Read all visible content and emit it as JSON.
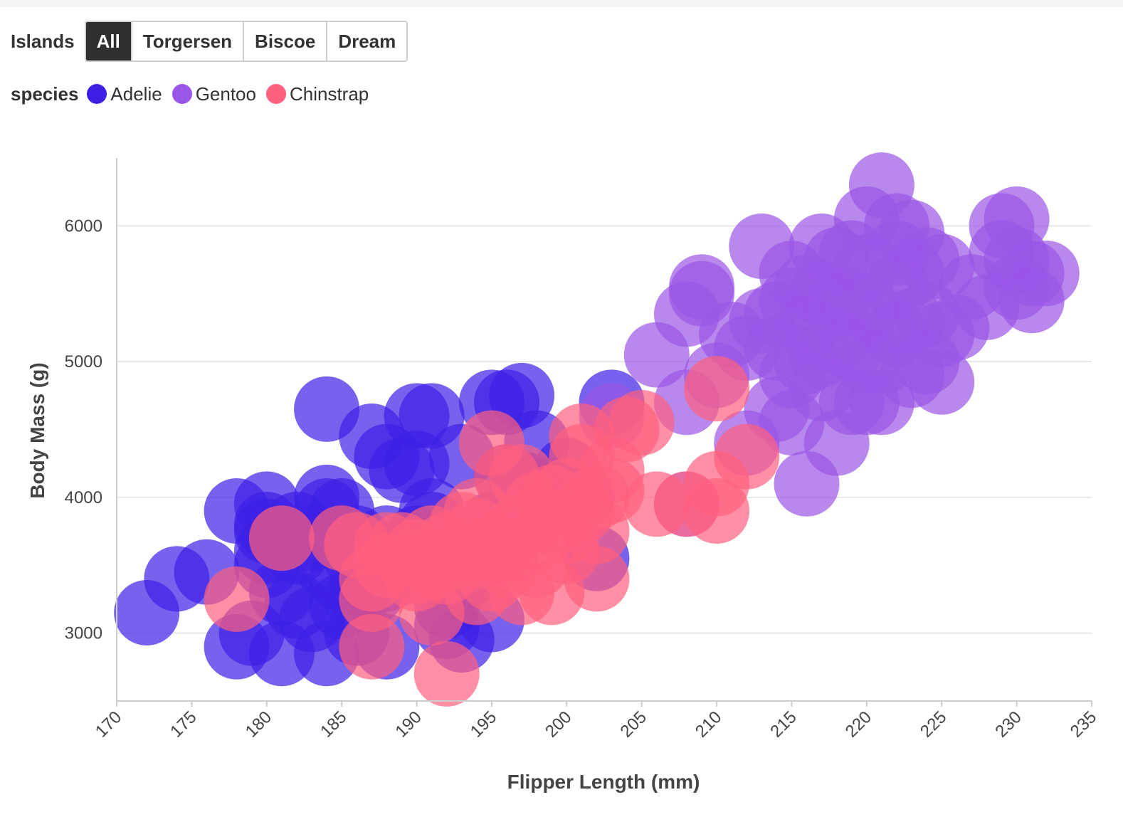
{
  "filter": {
    "label": "Islands",
    "options": [
      "All",
      "Torgersen",
      "Biscoe",
      "Dream"
    ],
    "selected": "All"
  },
  "legend": {
    "title": "species",
    "items": [
      {
        "label": "Adelie",
        "color": "#3d1fe6"
      },
      {
        "label": "Gentoo",
        "color": "#9a56e6"
      },
      {
        "label": "Chinstrap",
        "color": "#ff607e"
      }
    ]
  },
  "chart_data": {
    "type": "scatter",
    "xlabel": "Flipper Length (mm)",
    "ylabel": "Body Mass (g)",
    "xlim": [
      170,
      235
    ],
    "ylim": [
      2500,
      6500
    ],
    "xticks": [
      170,
      175,
      180,
      185,
      190,
      195,
      200,
      205,
      210,
      215,
      220,
      225,
      230,
      235
    ],
    "yticks": [
      3000,
      4000,
      5000,
      6000
    ],
    "grid": "horizontal",
    "series": [
      {
        "name": "Adelie",
        "color": "#3d1fe6",
        "points": [
          [
            172,
            3150
          ],
          [
            174,
            3400
          ],
          [
            176,
            3450
          ],
          [
            178,
            3900
          ],
          [
            178,
            2900
          ],
          [
            179,
            3000
          ],
          [
            180,
            3950
          ],
          [
            180,
            3800
          ],
          [
            180,
            3600
          ],
          [
            180,
            3500
          ],
          [
            181,
            2850
          ],
          [
            181,
            3300
          ],
          [
            182,
            3200
          ],
          [
            182,
            3600
          ],
          [
            183,
            3100
          ],
          [
            184,
            3900
          ],
          [
            184,
            3500
          ],
          [
            184,
            2850
          ],
          [
            185,
            3700
          ],
          [
            185,
            3400
          ],
          [
            185,
            3900
          ],
          [
            186,
            3250
          ],
          [
            186,
            3550
          ],
          [
            186,
            3000
          ],
          [
            187,
            4450
          ],
          [
            187,
            3600
          ],
          [
            188,
            4300
          ],
          [
            188,
            3400
          ],
          [
            188,
            2900
          ],
          [
            189,
            3500
          ],
          [
            189,
            4200
          ],
          [
            190,
            4600
          ],
          [
            190,
            4250
          ],
          [
            190,
            3700
          ],
          [
            190,
            3450
          ],
          [
            191,
            4600
          ],
          [
            191,
            3900
          ],
          [
            191,
            3800
          ],
          [
            192,
            3200
          ],
          [
            192,
            3050
          ],
          [
            193,
            4300
          ],
          [
            193,
            3400
          ],
          [
            193,
            2950
          ],
          [
            194,
            3600
          ],
          [
            194,
            3700
          ],
          [
            195,
            4700
          ],
          [
            195,
            3800
          ],
          [
            195,
            3100
          ],
          [
            196,
            4700
          ],
          [
            196,
            4150
          ],
          [
            197,
            4750
          ],
          [
            197,
            4100
          ],
          [
            198,
            4400
          ],
          [
            198,
            3900
          ],
          [
            199,
            4050
          ],
          [
            200,
            4200
          ],
          [
            201,
            4000
          ],
          [
            202,
            3550
          ],
          [
            203,
            4700
          ],
          [
            184,
            4650
          ],
          [
            180,
            3750
          ],
          [
            182,
            3800
          ],
          [
            187,
            3300
          ],
          [
            189,
            3600
          ],
          [
            184,
            4000
          ],
          [
            186,
            3700
          ],
          [
            183,
            3700
          ],
          [
            181,
            3700
          ],
          [
            188,
            3700
          ],
          [
            185,
            3200
          ]
        ]
      },
      {
        "name": "Gentoo",
        "color": "#9a56e6",
        "points": [
          [
            203,
            4600
          ],
          [
            206,
            5050
          ],
          [
            208,
            5350
          ],
          [
            208,
            4700
          ],
          [
            208,
            3950
          ],
          [
            209,
            5550
          ],
          [
            209,
            5500
          ],
          [
            210,
            4900
          ],
          [
            211,
            5200
          ],
          [
            212,
            4400
          ],
          [
            213,
            5850
          ],
          [
            213,
            5300
          ],
          [
            214,
            5100
          ],
          [
            214,
            4650
          ],
          [
            215,
            5650
          ],
          [
            215,
            5450
          ],
          [
            215,
            4900
          ],
          [
            215,
            4550
          ],
          [
            216,
            5550
          ],
          [
            216,
            5250
          ],
          [
            216,
            4100
          ],
          [
            217,
            5850
          ],
          [
            217,
            5500
          ],
          [
            217,
            5050
          ],
          [
            217,
            4800
          ],
          [
            218,
            5750
          ],
          [
            218,
            5400
          ],
          [
            218,
            4400
          ],
          [
            219,
            5800
          ],
          [
            219,
            5100
          ],
          [
            219,
            4700
          ],
          [
            220,
            5700
          ],
          [
            220,
            5400
          ],
          [
            220,
            5000
          ],
          [
            220,
            4700
          ],
          [
            220,
            6050
          ],
          [
            221,
            6300
          ],
          [
            221,
            5300
          ],
          [
            221,
            4700
          ],
          [
            222,
            6000
          ],
          [
            222,
            5800
          ],
          [
            222,
            5550
          ],
          [
            222,
            5200
          ],
          [
            223,
            5950
          ],
          [
            223,
            5650
          ],
          [
            223,
            4900
          ],
          [
            224,
            5750
          ],
          [
            224,
            5350
          ],
          [
            224,
            5000
          ],
          [
            225,
            5700
          ],
          [
            225,
            5200
          ],
          [
            225,
            4850
          ],
          [
            226,
            5250
          ],
          [
            227,
            5550
          ],
          [
            228,
            5400
          ],
          [
            229,
            6000
          ],
          [
            229,
            5800
          ],
          [
            230,
            6050
          ],
          [
            230,
            5750
          ],
          [
            230,
            5550
          ],
          [
            231,
            5650
          ],
          [
            231,
            5450
          ],
          [
            232,
            5650
          ],
          [
            216,
            5000
          ],
          [
            214,
            5350
          ],
          [
            212,
            5100
          ],
          [
            218,
            5150
          ],
          [
            219,
            5450
          ],
          [
            221,
            5000
          ],
          [
            223,
            5300
          ]
        ]
      },
      {
        "name": "Chinstrap",
        "color": "#ff607e",
        "points": [
          [
            178,
            3250
          ],
          [
            181,
            3700
          ],
          [
            185,
            3700
          ],
          [
            186,
            3650
          ],
          [
            187,
            3400
          ],
          [
            187,
            3250
          ],
          [
            187,
            2900
          ],
          [
            188,
            3650
          ],
          [
            188,
            3500
          ],
          [
            189,
            3650
          ],
          [
            190,
            3600
          ],
          [
            190,
            3400
          ],
          [
            191,
            3700
          ],
          [
            191,
            3150
          ],
          [
            192,
            3650
          ],
          [
            192,
            3450
          ],
          [
            192,
            2700
          ],
          [
            193,
            3800
          ],
          [
            193,
            3550
          ],
          [
            194,
            3750
          ],
          [
            194,
            3300
          ],
          [
            195,
            4400
          ],
          [
            195,
            3650
          ],
          [
            195,
            3400
          ],
          [
            196,
            4150
          ],
          [
            196,
            3700
          ],
          [
            196,
            3500
          ],
          [
            197,
            4150
          ],
          [
            197,
            3800
          ],
          [
            197,
            3300
          ],
          [
            198,
            3950
          ],
          [
            198,
            3500
          ],
          [
            199,
            3800
          ],
          [
            199,
            3300
          ],
          [
            200,
            4050
          ],
          [
            200,
            3600
          ],
          [
            201,
            4450
          ],
          [
            201,
            4300
          ],
          [
            201,
            3900
          ],
          [
            202,
            4000
          ],
          [
            202,
            3400
          ],
          [
            203,
            4200
          ],
          [
            203,
            4050
          ],
          [
            204,
            4500
          ],
          [
            205,
            4550
          ],
          [
            206,
            3950
          ],
          [
            208,
            3950
          ],
          [
            210,
            4800
          ],
          [
            210,
            4100
          ],
          [
            210,
            3900
          ],
          [
            212,
            4300
          ],
          [
            199,
            4000
          ],
          [
            194,
            3900
          ],
          [
            200,
            3750
          ],
          [
            202,
            3750
          ],
          [
            198,
            3700
          ],
          [
            196,
            3600
          ],
          [
            195,
            3600
          ],
          [
            190,
            3450
          ],
          [
            191,
            3500
          ]
        ]
      }
    ]
  }
}
